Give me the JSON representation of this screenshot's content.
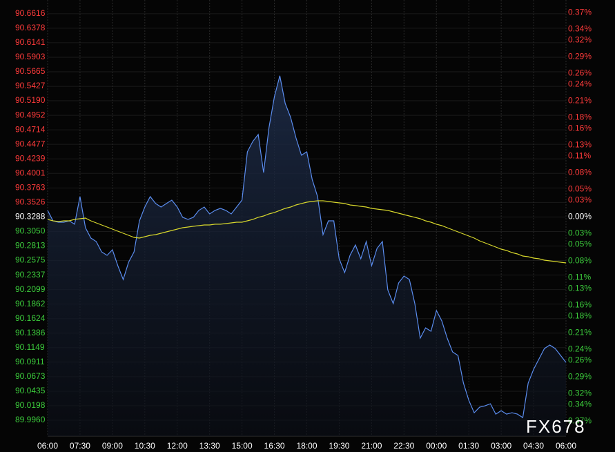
{
  "chart_data": {
    "type": "line",
    "categories": [
      "06:00",
      null,
      null,
      null,
      null,
      null,
      "07:30",
      null,
      null,
      null,
      null,
      null,
      "09:00",
      null,
      null,
      null,
      null,
      null,
      "10:30",
      null,
      null,
      null,
      null,
      null,
      "12:00",
      null,
      null,
      null,
      null,
      null,
      "13:30",
      null,
      null,
      null,
      null,
      null,
      "15:00",
      null,
      null,
      null,
      null,
      null,
      "16:30",
      null,
      null,
      null,
      null,
      null,
      "18:00",
      null,
      null,
      null,
      null,
      null,
      "19:30",
      null,
      null,
      null,
      null,
      null,
      "21:00",
      null,
      null,
      null,
      null,
      null,
      "22:30",
      null,
      null,
      null,
      null,
      null,
      "00:00",
      null,
      null,
      null,
      null,
      null,
      "01:30",
      null,
      null,
      null,
      null,
      null,
      "03:00",
      null,
      null,
      null,
      null,
      null,
      "04:30",
      null,
      null,
      null,
      null,
      null,
      "06:00"
    ],
    "series": [
      {
        "color": "#5b8def",
        "area": true,
        "values": [
          90.3395,
          90.3225,
          90.3202,
          90.3202,
          90.3225,
          90.3169,
          90.3621,
          90.3112,
          90.2943,
          90.2886,
          90.2716,
          90.266,
          90.275,
          90.249,
          90.2264,
          90.2547,
          90.2716,
          90.3225,
          90.3451,
          90.3621,
          90.3508,
          90.3451,
          90.3508,
          90.3564,
          90.3451,
          90.3282,
          90.3248,
          90.3282,
          90.3395,
          90.3451,
          90.3338,
          90.3395,
          90.3429,
          90.3395,
          90.3338,
          90.3451,
          90.3564,
          90.4355,
          90.4525,
          90.4638,
          90.4016,
          90.4751,
          90.526,
          90.5599,
          90.5147,
          90.4921,
          90.4581,
          90.4299,
          90.4355,
          90.3903,
          90.3621,
          90.2999,
          90.3225,
          90.3225,
          90.2603,
          90.2377,
          90.266,
          90.2829,
          90.2603,
          90.2886,
          90.249,
          90.2773,
          90.2886,
          90.2095,
          90.1869,
          90.2208,
          90.2321,
          90.2264,
          90.1869,
          90.1304,
          90.1473,
          90.1417,
          90.1756,
          90.1586,
          90.1304,
          90.1078,
          90.1021,
          90.0569,
          90.0286,
          90.0083,
          90.0173,
          90.0196,
          90.023,
          90.006,
          90.0117,
          90.006,
          90.0083,
          90.006,
          90.0004,
          90.0569,
          90.0795,
          90.0964,
          90.1134,
          90.1191,
          90.1134,
          90.1021,
          90.0908
        ]
      },
      {
        "color": "#d8d82c",
        "area": false,
        "values": [
          90.3248,
          90.3225,
          90.3214,
          90.3225,
          90.3225,
          90.3248,
          90.3259,
          90.327,
          90.3225,
          90.3191,
          90.3157,
          90.3123,
          90.3089,
          90.3055,
          90.3022,
          90.2988,
          90.2954,
          90.2942,
          90.2965,
          90.2988,
          90.2999,
          90.3022,
          90.3044,
          90.3067,
          90.3089,
          90.3112,
          90.3123,
          90.3135,
          90.3146,
          90.3157,
          90.3157,
          90.3169,
          90.3169,
          90.318,
          90.3191,
          90.3202,
          90.3202,
          90.3225,
          90.3248,
          90.3282,
          90.3304,
          90.3338,
          90.3361,
          90.3395,
          90.3428,
          90.3451,
          90.3485,
          90.3508,
          90.353,
          90.3542,
          90.3553,
          90.3553,
          90.3542,
          90.353,
          90.3519,
          90.3508,
          90.3485,
          90.3474,
          90.3462,
          90.3451,
          90.3428,
          90.3417,
          90.3406,
          90.3395,
          90.3372,
          90.3349,
          90.3327,
          90.3304,
          90.3282,
          90.3259,
          90.3225,
          90.3202,
          90.3169,
          90.3146,
          90.3112,
          90.3078,
          90.3044,
          90.301,
          90.2976,
          90.2942,
          90.2897,
          90.2863,
          90.2829,
          90.2796,
          90.2762,
          90.2739,
          90.2705,
          90.2682,
          90.2649,
          90.2637,
          90.2615,
          90.2603,
          90.2581,
          90.2569,
          90.2558,
          90.2547,
          90.2536
        ]
      }
    ],
    "ylim": [
      89.97,
      90.684
    ],
    "yticks": [
      90.6616,
      90.6378,
      90.6141,
      90.5903,
      90.5665,
      90.5427,
      {
        "value": 90.519,
        "label": "90.5190"
      },
      90.4952,
      90.4714,
      90.4477,
      90.4239,
      90.4001,
      90.3763,
      90.3526,
      90.3288,
      {
        "value": 90.305,
        "label": "90.3050"
      },
      90.2813,
      90.2575,
      90.2337,
      90.2099,
      90.1862,
      90.1624,
      90.1386,
      90.1149,
      90.0911,
      90.0673,
      90.0435,
      90.0198,
      {
        "value": 89.996,
        "label": "89.9960"
      }
    ],
    "y2lim": [
      -0.397,
      0.393
    ],
    "y2ticks": [
      {
        "value": 0.37,
        "label": "0.37%"
      },
      {
        "value": 0.34,
        "label": "0.34%"
      },
      {
        "value": 0.32,
        "label": "0.32%"
      },
      {
        "value": 0.29,
        "label": "0.29%"
      },
      {
        "value": 0.26,
        "label": "0.26%"
      },
      {
        "value": 0.24,
        "label": "0.24%"
      },
      {
        "value": 0.21,
        "label": "0.21%"
      },
      {
        "value": 0.18,
        "label": "0.18%"
      },
      {
        "value": 0.16,
        "label": "0.16%"
      },
      {
        "value": 0.13,
        "label": "0.13%"
      },
      {
        "value": 0.11,
        "label": "0.11%"
      },
      {
        "value": 0.08,
        "label": "0.08%"
      },
      {
        "value": 0.05,
        "label": "0.05%"
      },
      {
        "value": 0.03,
        "label": "0.03%"
      },
      {
        "value": 0,
        "label": "0.00%"
      },
      {
        "value": -0.03,
        "label": "0.03%"
      },
      {
        "value": -0.05,
        "label": "0.05%"
      },
      {
        "value": -0.08,
        "label": "0.08%"
      },
      {
        "value": -0.11,
        "label": "0.11%"
      },
      {
        "value": -0.13,
        "label": "0.13%"
      },
      {
        "value": -0.16,
        "label": "0.16%"
      },
      {
        "value": -0.18,
        "label": "0.18%"
      },
      {
        "value": -0.21,
        "label": "0.21%"
      },
      {
        "value": -0.24,
        "label": "0.24%"
      },
      {
        "value": -0.26,
        "label": "0.26%"
      },
      {
        "value": -0.29,
        "label": "0.29%"
      },
      {
        "value": -0.32,
        "label": "0.32%"
      },
      {
        "value": -0.34,
        "label": "0.34%"
      },
      {
        "value": -0.37,
        "label": "0.37%"
      }
    ],
    "grid": true,
    "up_color": "#ff3b3b",
    "down_color": "#3ccc3c",
    "neutral_color": "#ffffff",
    "watermark": "FX678"
  }
}
